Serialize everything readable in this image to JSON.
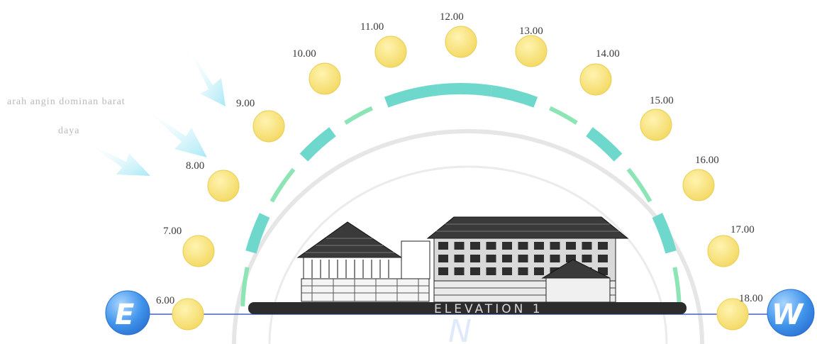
{
  "diagram": {
    "hours": [
      "6.00",
      "7.00",
      "8.00",
      "9.00",
      "10.00",
      "11.00",
      "12.00",
      "13.00",
      "14.00",
      "15.00",
      "16.00",
      "17.00",
      "18.00"
    ],
    "side_note": {
      "line1": "arah angin dominan barat",
      "line2": "daya"
    },
    "building_label": "ELEVATION 1",
    "compass_east": "E",
    "compass_west": "W",
    "watermark_letter": "N",
    "colors": {
      "sun": "#f7e27a",
      "sun_edge": "#e9cf52",
      "arc_thick": "#6fd8cc",
      "arc_thin": "#8de4b4",
      "wind_arrow": "#bfeef7",
      "ground_line": "#3f63c8",
      "compass": "#3f93ea",
      "building_dark": "#2c2c2c"
    }
  }
}
